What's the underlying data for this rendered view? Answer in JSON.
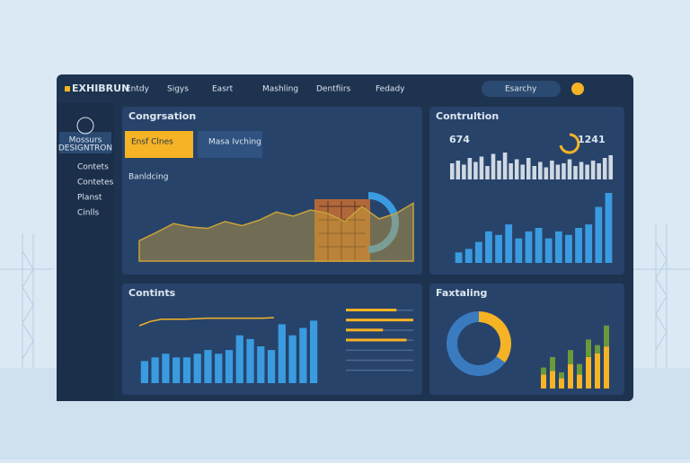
{
  "header": {
    "logo": "EXHIBRUN",
    "nav": [
      "Entdy",
      "Sigys",
      "Easrt",
      "Mashling",
      "Dentfiirs",
      "Fedady"
    ],
    "search": "Esarchy"
  },
  "sidebar": {
    "profile": [
      "Mossurs",
      "DESIGNTRON"
    ],
    "items": [
      "Contets",
      "Contetes",
      "Planst",
      "Cinlls"
    ]
  },
  "panels": [
    {
      "title": "Congrsation",
      "cards": [
        "Ensf Clnes",
        "Masa Ivching"
      ],
      "subtitle": "Banldcing",
      "charts": [
        {
          "type": "area",
          "color": "#c9a23a",
          "ylim": [
            0,
            100
          ],
          "values": [
            30,
            42,
            55,
            50,
            48,
            58,
            52,
            60,
            72,
            66,
            75,
            70,
            58,
            80,
            62,
            70,
            85
          ]
        }
      ]
    },
    {
      "title": "Contrultion",
      "kpis": [
        674,
        1241
      ],
      "charts": [
        {
          "type": "bar",
          "color": "#cfd8e3",
          "ylim": [
            0,
            100
          ],
          "values": [
            60,
            70,
            55,
            80,
            65,
            85,
            50,
            95,
            70,
            100,
            60,
            75,
            55,
            80,
            50,
            65,
            45,
            70,
            55,
            60,
            75,
            50,
            65,
            55,
            70,
            60,
            80,
            90
          ]
        },
        {
          "type": "bar",
          "color": "#3a9be0",
          "ylim": [
            0,
            100
          ],
          "values": [
            15,
            20,
            30,
            45,
            40,
            55,
            35,
            45,
            50,
            35,
            45,
            40,
            50,
            55,
            80,
            100
          ]
        }
      ]
    },
    {
      "title": "Contints",
      "charts": [
        {
          "type": "bar",
          "color": "#3a9be0",
          "ylim": [
            0,
            100
          ],
          "values": [
            30,
            35,
            40,
            35,
            35,
            40,
            45,
            40,
            45,
            65,
            60,
            50,
            45,
            80,
            65,
            75,
            85
          ]
        },
        {
          "type": "line",
          "color": "#f5b325",
          "ylim": [
            0,
            100
          ],
          "values": [
            70,
            78,
            82,
            82,
            82,
            83,
            84,
            84,
            84,
            84,
            84,
            84,
            85
          ]
        },
        {
          "type": "hbar",
          "color": "#f5b325",
          "xlim": [
            0,
            100
          ],
          "values": [
            75,
            100,
            55,
            90,
            0,
            0,
            0
          ]
        }
      ]
    },
    {
      "title": "Faxtaling",
      "charts": [
        {
          "type": "donut",
          "colors": [
            "#f5b325",
            "#3a7bc0"
          ],
          "values": [
            35,
            65
          ]
        },
        {
          "type": "stack",
          "ylim": [
            0,
            100
          ],
          "series": [
            {
              "color": "#f5b325",
              "values": [
                20,
                25,
                15,
                35,
                20,
                45,
                50,
                60
              ]
            },
            {
              "color": "#6a9a3a",
              "values": [
                10,
                20,
                8,
                20,
                15,
                25,
                12,
                30
              ]
            }
          ]
        }
      ]
    }
  ]
}
